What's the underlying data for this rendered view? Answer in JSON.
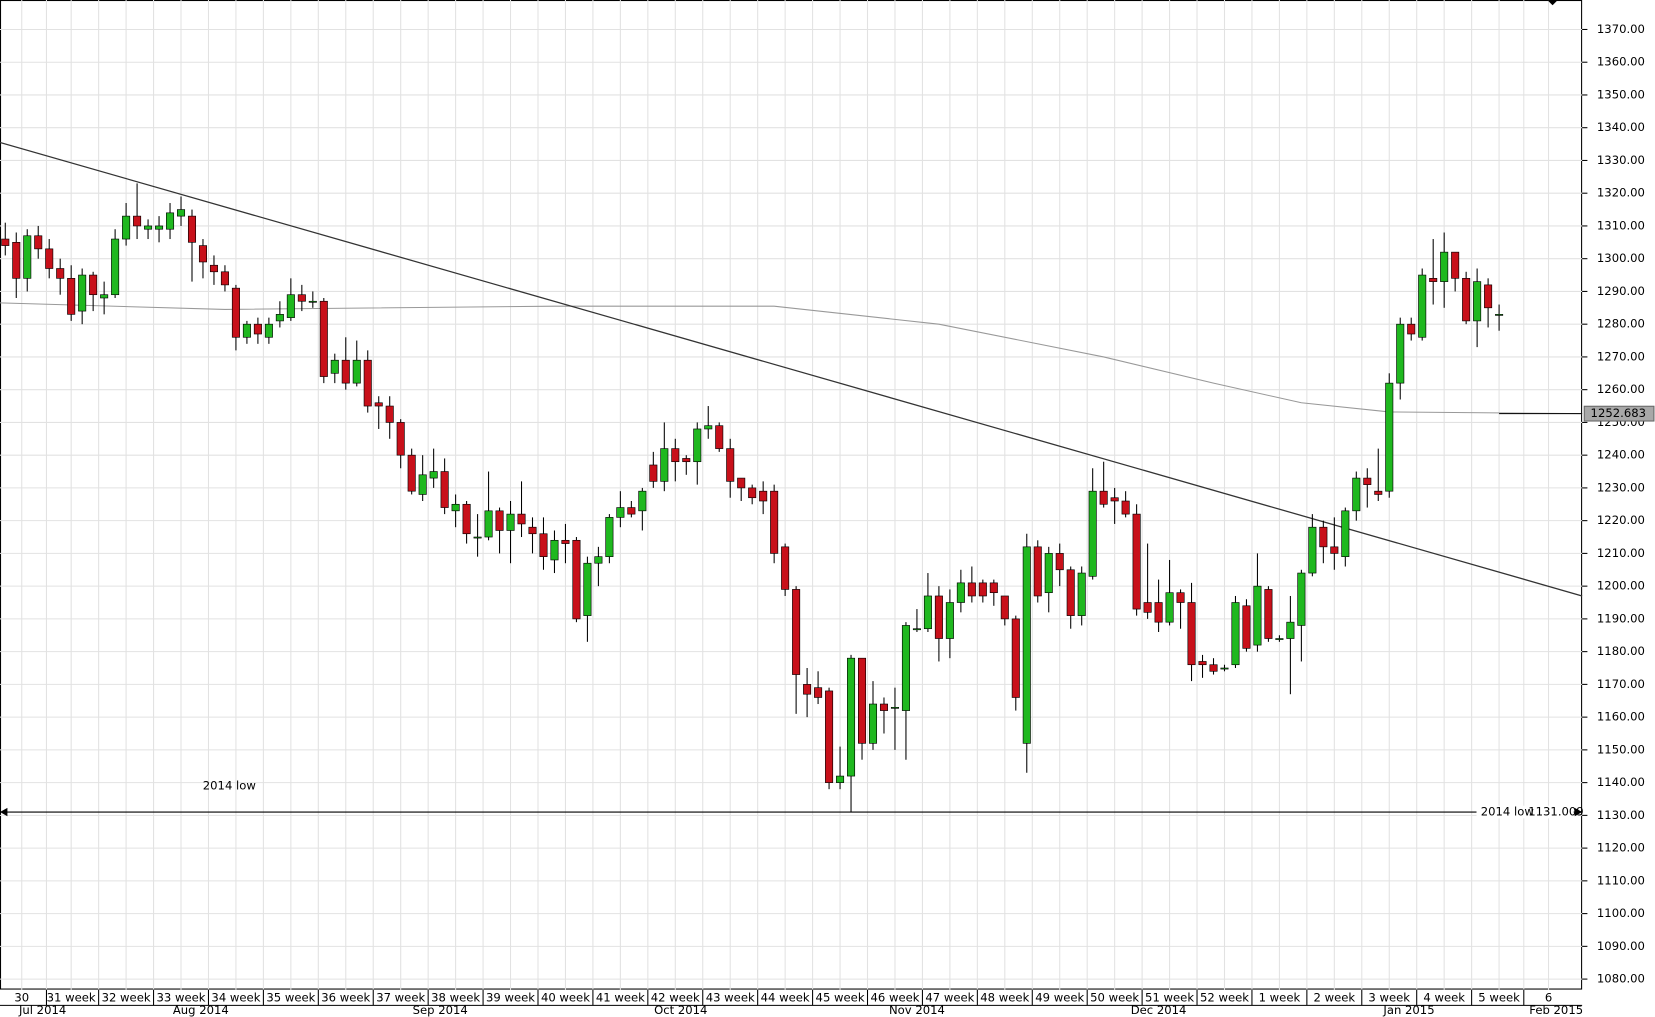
{
  "chart_data": {
    "type": "candlestick",
    "open": [
      1306,
      1305,
      1294,
      1307,
      1303,
      1297,
      1294,
      1284,
      1295,
      1288,
      1289,
      1306,
      1313,
      1309,
      1309,
      1309,
      1313,
      1313,
      1304,
      1298,
      1296,
      1291,
      1276,
      1280,
      1276,
      1281,
      1282,
      1289,
      1287,
      1287,
      1265,
      1269,
      1262,
      1269,
      1256,
      1255,
      1250,
      1240,
      1228,
      1233,
      1235,
      1223,
      1225,
      1215,
      1215,
      1223,
      1217,
      1222,
      1218,
      1216,
      1208,
      1214,
      1214,
      1191,
      1207,
      1209,
      1221,
      1224,
      1223,
      1237,
      1232,
      1242,
      1239,
      1238,
      1248,
      1249,
      1242,
      1233,
      1230,
      1229,
      1229,
      1212,
      1199,
      1170,
      1169,
      1168,
      1140,
      1142,
      1178,
      1152,
      1164,
      1163,
      1162,
      1187,
      1187,
      1197,
      1184,
      1195,
      1201,
      1201,
      1201,
      1197,
      1190,
      1152,
      1212,
      1198,
      1210,
      1205,
      1191,
      1203,
      1229,
      1227,
      1226,
      1222,
      1195,
      1195,
      1189,
      1198,
      1195,
      1177,
      1176,
      1175,
      1176,
      1194,
      1182,
      1199,
      1184,
      1184,
      1188,
      1204,
      1218,
      1212,
      1209,
      1223,
      1233,
      1229,
      1229,
      1262,
      1280,
      1276,
      1294,
      1293,
      1302,
      1294,
      1281,
      1292,
      1283
    ],
    "high": [
      1311,
      1308,
      1309,
      1310,
      1306,
      1300,
      1298,
      1297,
      1296,
      1293,
      1309,
      1317,
      1323,
      1312,
      1313,
      1317,
      1319,
      1315,
      1306,
      1301,
      1298,
      1292,
      1281,
      1282,
      1282,
      1287,
      1294,
      1292,
      1290,
      1288,
      1271,
      1276,
      1275,
      1272,
      1258,
      1258,
      1251,
      1242,
      1240,
      1242,
      1239,
      1228,
      1226,
      1222,
      1235,
      1224,
      1226,
      1232,
      1221,
      1221,
      1217,
      1219,
      1215,
      1209,
      1212,
      1222,
      1229,
      1226,
      1230,
      1241,
      1250,
      1245,
      1240,
      1250,
      1255,
      1250,
      1245,
      1233,
      1231,
      1232,
      1231,
      1213,
      1200,
      1175,
      1174,
      1169,
      1151,
      1179,
      1178,
      1171,
      1166,
      1169,
      1189,
      1193,
      1204,
      1200,
      1199,
      1205,
      1206,
      1202,
      1202,
      1197,
      1191,
      1216,
      1214,
      1212,
      1213,
      1206,
      1206,
      1236,
      1238,
      1230,
      1229,
      1225,
      1213,
      1202,
      1208,
      1199,
      1201,
      1179,
      1178,
      1176,
      1197,
      1196,
      1210,
      1200,
      1185,
      1197,
      1205,
      1222,
      1220,
      1221,
      1224,
      1235,
      1236,
      1242,
      1265,
      1282,
      1282,
      1297,
      1306,
      1308,
      1302,
      1296,
      1297,
      1294,
      1286
    ],
    "low": [
      1301,
      1288,
      1290,
      1300,
      1294,
      1289,
      1281,
      1280,
      1284,
      1283,
      1288,
      1304,
      1306,
      1306,
      1305,
      1306,
      1310,
      1293,
      1294,
      1292,
      1290,
      1272,
      1274,
      1274,
      1274,
      1279,
      1281,
      1284,
      1285,
      1262,
      1262,
      1260,
      1261,
      1253,
      1248,
      1245,
      1236,
      1228,
      1226,
      1230,
      1222,
      1218,
      1213,
      1209,
      1214,
      1210,
      1207,
      1215,
      1210,
      1205,
      1204,
      1207,
      1189,
      1183,
      1200,
      1207,
      1218,
      1221,
      1217,
      1230,
      1229,
      1232,
      1234,
      1231,
      1245,
      1241,
      1227,
      1226,
      1225,
      1222,
      1207,
      1197,
      1161,
      1160,
      1164,
      1138,
      1138,
      1131,
      1147,
      1150,
      1155,
      1150,
      1147,
      1186,
      1186,
      1177,
      1178,
      1192,
      1195,
      1195,
      1194,
      1188,
      1162,
      1143,
      1195,
      1192,
      1200,
      1187,
      1188,
      1202,
      1224,
      1219,
      1221,
      1191,
      1190,
      1186,
      1188,
      1187,
      1171,
      1172,
      1173,
      1174,
      1175,
      1180,
      1180,
      1183,
      1183,
      1167,
      1177,
      1203,
      1207,
      1205,
      1206,
      1220,
      1224,
      1226,
      1227,
      1257,
      1275,
      1275,
      1286,
      1285,
      1290,
      1280,
      1273,
      1279,
      1278
    ],
    "close": [
      1304,
      1294,
      1307,
      1303,
      1297,
      1294,
      1283,
      1295,
      1289,
      1289,
      1306,
      1313,
      1310,
      1310,
      1310,
      1314,
      1315,
      1305,
      1299,
      1296,
      1292,
      1276,
      1280,
      1277,
      1280,
      1283,
      1289,
      1287,
      1287,
      1264,
      1269,
      1262,
      1269,
      1255,
      1255,
      1250,
      1240,
      1229,
      1234,
      1235,
      1224,
      1225,
      1216,
      1215,
      1223,
      1217,
      1222,
      1219,
      1216,
      1209,
      1214,
      1213,
      1190,
      1207,
      1209,
      1221,
      1224,
      1222,
      1229,
      1232,
      1242,
      1238,
      1238,
      1248,
      1249,
      1242,
      1232,
      1230,
      1227,
      1226,
      1210,
      1199,
      1173,
      1167,
      1166,
      1140,
      1142,
      1178,
      1152,
      1164,
      1162,
      1163,
      1188,
      1187,
      1197,
      1184,
      1195,
      1201,
      1197,
      1197,
      1198,
      1190,
      1166,
      1212,
      1197,
      1210,
      1205,
      1191,
      1204,
      1229,
      1225,
      1226,
      1222,
      1193,
      1192,
      1189,
      1198,
      1195,
      1176,
      1176,
      1174,
      1175,
      1195,
      1181,
      1200,
      1184,
      1184,
      1189,
      1204,
      1218,
      1212,
      1210,
      1223,
      1233,
      1231,
      1228,
      1262,
      1280,
      1277,
      1295,
      1293,
      1302,
      1294,
      1281,
      1293,
      1285,
      1283
    ],
    "up_color": "#1fb81f",
    "down_color": "#c8101a",
    "ylim": [
      1076.8,
      1379.0
    ],
    "yticks": [
      {
        "value": 1080,
        "label": "1080.00"
      },
      {
        "value": 1090,
        "label": "1090.00"
      },
      {
        "value": 1100,
        "label": "1100.00"
      },
      {
        "value": 1110,
        "label": "1110.00"
      },
      {
        "value": 1120,
        "label": "1120.00"
      },
      {
        "value": 1130,
        "label": "1130.00"
      },
      {
        "value": 1140,
        "label": "1140.00"
      },
      {
        "value": 1150,
        "label": "1150.00"
      },
      {
        "value": 1160,
        "label": "1160.00"
      },
      {
        "value": 1170,
        "label": "1170.00"
      },
      {
        "value": 1180,
        "label": "1180.00"
      },
      {
        "value": 1190,
        "label": "1190.00"
      },
      {
        "value": 1200,
        "label": "1200.00"
      },
      {
        "value": 1210,
        "label": "1210.00"
      },
      {
        "value": 1220,
        "label": "1220.00"
      },
      {
        "value": 1230,
        "label": "1230.00"
      },
      {
        "value": 1240,
        "label": "1240.00"
      },
      {
        "value": 1250,
        "label": "1250.00"
      },
      {
        "value": 1260,
        "label": "1260.00"
      },
      {
        "value": 1270,
        "label": "1270.00"
      },
      {
        "value": 1280,
        "label": "1280.00"
      },
      {
        "value": 1290,
        "label": "1290.00"
      },
      {
        "value": 1300,
        "label": "1300.00"
      },
      {
        "value": 1310,
        "label": "1310.00"
      },
      {
        "value": 1320,
        "label": "1320.00"
      },
      {
        "value": 1330,
        "label": "1330.00"
      },
      {
        "value": 1340,
        "label": "1340.00"
      },
      {
        "value": 1350,
        "label": "1350.00"
      },
      {
        "value": 1360,
        "label": "1360.00"
      },
      {
        "value": 1370,
        "label": "1370.00"
      }
    ],
    "xlim": [
      -0.48,
      143.56
    ],
    "xticks": [
      {
        "value": 1.5,
        "label": "30"
      },
      {
        "value": 6,
        "label": "31 week"
      },
      {
        "value": 11,
        "label": "32 week"
      },
      {
        "value": 16,
        "label": "33 week"
      },
      {
        "value": 21,
        "label": "34 week"
      },
      {
        "value": 26,
        "label": "35 week"
      },
      {
        "value": 31,
        "label": "36 week"
      },
      {
        "value": 36,
        "label": "37 week"
      },
      {
        "value": 41,
        "label": "38 week"
      },
      {
        "value": 46,
        "label": "39 week"
      },
      {
        "value": 51,
        "label": "40 week"
      },
      {
        "value": 56,
        "label": "41 week"
      },
      {
        "value": 61,
        "label": "42 week"
      },
      {
        "value": 66,
        "label": "43 week"
      },
      {
        "value": 71,
        "label": "44 week"
      },
      {
        "value": 76,
        "label": "45 week"
      },
      {
        "value": 81,
        "label": "46 week"
      },
      {
        "value": 86,
        "label": "47 week"
      },
      {
        "value": 91,
        "label": "48 week"
      },
      {
        "value": 96,
        "label": "49 week"
      },
      {
        "value": 101,
        "label": "50 week"
      },
      {
        "value": 106,
        "label": "51 week"
      },
      {
        "value": 111,
        "label": "52 week"
      },
      {
        "value": 116,
        "label": "1 week"
      },
      {
        "value": 121,
        "label": "2 week"
      },
      {
        "value": 126,
        "label": "3 week"
      },
      {
        "value": 131,
        "label": "4 week"
      },
      {
        "value": 136,
        "label": "5 week"
      },
      {
        "value": 140.5,
        "label": "6"
      }
    ],
    "month_ticks": [
      {
        "value": 3.4,
        "label": "Jul 2014"
      },
      {
        "value": 17.8,
        "label": "Aug 2014"
      },
      {
        "value": 39.6,
        "label": "Sep 2014"
      },
      {
        "value": 61.5,
        "label": "Oct 2014"
      },
      {
        "value": 83,
        "label": "Nov 2014"
      },
      {
        "value": 105,
        "label": "Dec 2014"
      },
      {
        "value": 127.8,
        "label": "Jan 2015"
      },
      {
        "value": 141.2,
        "label": "Feb 2015"
      }
    ],
    "grid": true,
    "trendline": {
      "x": [
        -0.48,
        143.56
      ],
      "y": [
        1335.5,
        1197.0
      ],
      "color": "#333333"
    },
    "moving_average": {
      "x": [
        -0.48,
        20,
        50,
        70,
        85,
        100,
        110,
        118,
        126,
        143.56
      ],
      "values": [
        1286.5,
        1284.5,
        1285.5,
        1285.5,
        1280,
        1270,
        1262,
        1256,
        1253.2,
        1252.683
      ],
      "color": "#999999"
    },
    "annotation": {
      "text": "2014 low",
      "level": 1131.009,
      "level_name": "2014 low"
    }
  }
}
